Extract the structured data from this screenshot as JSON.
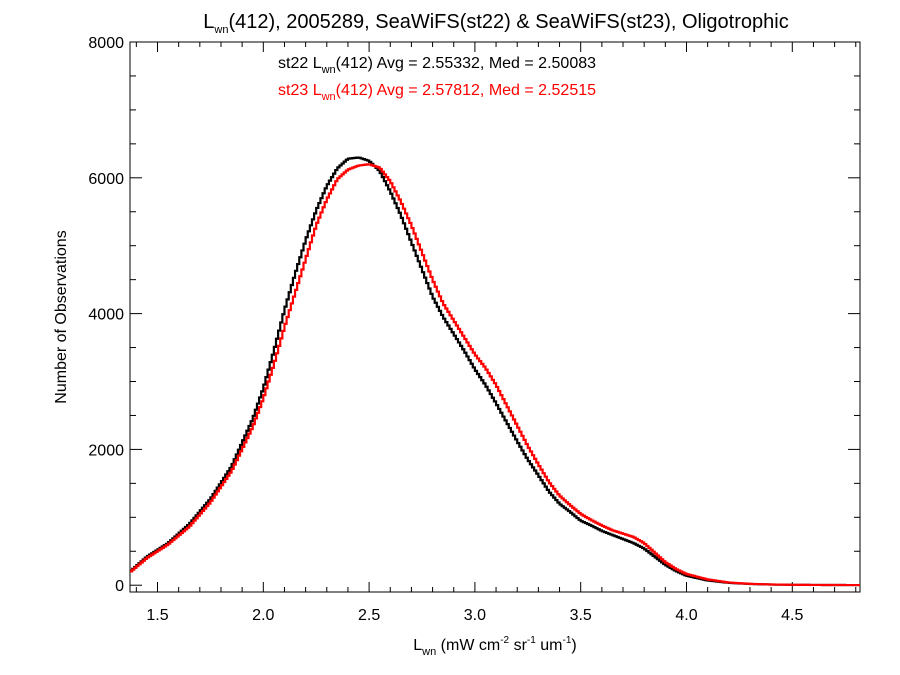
{
  "chart_data": {
    "type": "line",
    "title": {
      "main": "L",
      "sub": "wn",
      "rest": "(412), 2005289, SeaWiFS(st22) & SeaWiFS(st23), Oligotrophic"
    },
    "xlabel": {
      "main": "L",
      "sub": "wn",
      "p1": " (mW cm",
      "sup1": "-2",
      "p2": " sr",
      "sup2": "-1",
      "p3": " um",
      "sup3": "-1",
      "p4": ")"
    },
    "ylabel": "Number of Observations",
    "xlim": [
      1.37,
      4.82
    ],
    "ylim": [
      -100,
      8000
    ],
    "x_ticks": [
      {
        "value": 1.5,
        "label": "1.5"
      },
      {
        "value": 2.0,
        "label": "2.0"
      },
      {
        "value": 2.5,
        "label": "2.5"
      },
      {
        "value": 3.0,
        "label": "3.0"
      },
      {
        "value": 3.5,
        "label": "3.5"
      },
      {
        "value": 4.0,
        "label": "4.0"
      },
      {
        "value": 4.5,
        "label": "4.5"
      }
    ],
    "y_ticks": [
      {
        "value": 0,
        "label": "0"
      },
      {
        "value": 2000,
        "label": "2000"
      },
      {
        "value": 4000,
        "label": "4000"
      },
      {
        "value": 6000,
        "label": "6000"
      },
      {
        "value": 8000,
        "label": "8000"
      }
    ],
    "annotations": [
      {
        "pre": "st22 L",
        "sub": "wn",
        "post": "(412) Avg = 2.55332, Med = 2.50083",
        "color": "#000000"
      },
      {
        "pre": "st23 L",
        "sub": "wn",
        "post": "(412) Avg = 2.57812, Med = 2.52515",
        "color": "#ff0000"
      }
    ],
    "series": [
      {
        "color": "#000000",
        "points": [
          [
            1.37,
            200
          ],
          [
            1.45,
            420
          ],
          [
            1.55,
            620
          ],
          [
            1.65,
            900
          ],
          [
            1.75,
            1270
          ],
          [
            1.85,
            1750
          ],
          [
            1.95,
            2450
          ],
          [
            2.0,
            2900
          ],
          [
            2.05,
            3450
          ],
          [
            2.1,
            4050
          ],
          [
            2.15,
            4580
          ],
          [
            2.2,
            5080
          ],
          [
            2.25,
            5520
          ],
          [
            2.3,
            5880
          ],
          [
            2.35,
            6140
          ],
          [
            2.4,
            6280
          ],
          [
            2.45,
            6300
          ],
          [
            2.5,
            6250
          ],
          [
            2.55,
            6100
          ],
          [
            2.6,
            5800
          ],
          [
            2.65,
            5450
          ],
          [
            2.7,
            5050
          ],
          [
            2.75,
            4650
          ],
          [
            2.8,
            4250
          ],
          [
            2.85,
            3950
          ],
          [
            2.9,
            3700
          ],
          [
            2.95,
            3450
          ],
          [
            3.0,
            3180
          ],
          [
            3.05,
            2950
          ],
          [
            3.1,
            2680
          ],
          [
            3.15,
            2400
          ],
          [
            3.2,
            2120
          ],
          [
            3.25,
            1850
          ],
          [
            3.3,
            1620
          ],
          [
            3.35,
            1380
          ],
          [
            3.4,
            1200
          ],
          [
            3.45,
            1080
          ],
          [
            3.5,
            950
          ],
          [
            3.55,
            880
          ],
          [
            3.6,
            800
          ],
          [
            3.65,
            740
          ],
          [
            3.7,
            680
          ],
          [
            3.75,
            620
          ],
          [
            3.8,
            540
          ],
          [
            3.85,
            420
          ],
          [
            3.9,
            300
          ],
          [
            3.95,
            210
          ],
          [
            4.0,
            140
          ],
          [
            4.1,
            70
          ],
          [
            4.2,
            35
          ],
          [
            4.3,
            18
          ],
          [
            4.4,
            10
          ],
          [
            4.5,
            6
          ],
          [
            4.6,
            4
          ],
          [
            4.7,
            3
          ],
          [
            4.82,
            2
          ]
        ]
      },
      {
        "color": "#ff0000",
        "points": [
          [
            1.37,
            190
          ],
          [
            1.45,
            400
          ],
          [
            1.55,
            600
          ],
          [
            1.65,
            860
          ],
          [
            1.75,
            1220
          ],
          [
            1.85,
            1680
          ],
          [
            1.95,
            2330
          ],
          [
            2.0,
            2750
          ],
          [
            2.05,
            3250
          ],
          [
            2.1,
            3800
          ],
          [
            2.15,
            4300
          ],
          [
            2.2,
            4800
          ],
          [
            2.25,
            5300
          ],
          [
            2.3,
            5680
          ],
          [
            2.35,
            5980
          ],
          [
            2.4,
            6120
          ],
          [
            2.45,
            6180
          ],
          [
            2.5,
            6200
          ],
          [
            2.55,
            6150
          ],
          [
            2.6,
            5950
          ],
          [
            2.65,
            5650
          ],
          [
            2.7,
            5300
          ],
          [
            2.75,
            4900
          ],
          [
            2.8,
            4500
          ],
          [
            2.85,
            4150
          ],
          [
            2.9,
            3900
          ],
          [
            2.95,
            3650
          ],
          [
            3.0,
            3400
          ],
          [
            3.05,
            3200
          ],
          [
            3.1,
            2950
          ],
          [
            3.15,
            2650
          ],
          [
            3.2,
            2350
          ],
          [
            3.25,
            2050
          ],
          [
            3.3,
            1780
          ],
          [
            3.35,
            1520
          ],
          [
            3.4,
            1320
          ],
          [
            3.45,
            1180
          ],
          [
            3.5,
            1050
          ],
          [
            3.55,
            960
          ],
          [
            3.6,
            880
          ],
          [
            3.65,
            810
          ],
          [
            3.7,
            760
          ],
          [
            3.75,
            710
          ],
          [
            3.8,
            620
          ],
          [
            3.85,
            480
          ],
          [
            3.9,
            340
          ],
          [
            3.95,
            240
          ],
          [
            4.0,
            165
          ],
          [
            4.1,
            85
          ],
          [
            4.2,
            40
          ],
          [
            4.3,
            20
          ],
          [
            4.4,
            11
          ],
          [
            4.5,
            6
          ],
          [
            4.6,
            4
          ],
          [
            4.7,
            3
          ],
          [
            4.82,
            2
          ]
        ]
      }
    ]
  }
}
